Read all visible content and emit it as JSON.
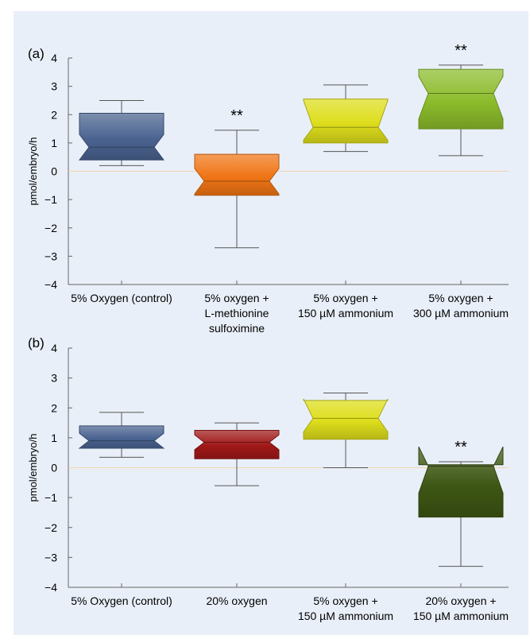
{
  "colors": {
    "background": "#e9eff8",
    "zero_line": "#f2d2b0",
    "whisker": "#555555"
  },
  "chart_data": [
    {
      "panel_label": "(a)",
      "type": "notched-boxplot",
      "ylabel": "pmol/embryo/h",
      "ylim": [
        -4,
        4
      ],
      "yticks": [
        "4",
        "3",
        "2",
        "1",
        "0",
        "−1",
        "−2",
        "−3",
        "−4"
      ],
      "categories": [
        [
          "5% Oxygen (control)"
        ],
        [
          "5% oxygen +",
          "L-methionine",
          "sulfoximine"
        ],
        [
          "5% oxygen +",
          "150 µM ammonium"
        ],
        [
          "5% oxygen +",
          "300 µM ammonium"
        ]
      ],
      "boxes": [
        {
          "whisker_low": 0.2,
          "q1": 0.4,
          "median": 0.85,
          "q3": 2.05,
          "whisker_high": 2.5,
          "notch_low": 0.4,
          "notch_high": 1.3,
          "color": "#4a6390",
          "significance": ""
        },
        {
          "whisker_low": -2.7,
          "q1": -0.85,
          "median": -0.35,
          "q3": 0.6,
          "whisker_high": 1.45,
          "notch_low": -0.8,
          "notch_high": 0.1,
          "color": "#f07515",
          "significance": "**"
        },
        {
          "whisker_low": 0.7,
          "q1": 1.0,
          "median": 1.55,
          "q3": 2.55,
          "whisker_high": 3.05,
          "notch_low": 1.1,
          "notch_high": 2.5,
          "color": "#dede1c",
          "significance": ""
        },
        {
          "whisker_low": 0.55,
          "q1": 1.5,
          "median": 2.75,
          "q3": 3.6,
          "whisker_high": 3.75,
          "notch_low": 1.85,
          "notch_high": 3.35,
          "color": "#8cbc2c",
          "significance": "**"
        }
      ]
    },
    {
      "panel_label": "(b)",
      "type": "notched-boxplot",
      "ylabel": "pmol/embryo/h",
      "ylim": [
        -4,
        4
      ],
      "yticks": [
        "4",
        "3",
        "2",
        "1",
        "0",
        "−1",
        "−2",
        "−3",
        "−4"
      ],
      "categories": [
        [
          "5% Oxygen (control)"
        ],
        [
          "20% oxygen"
        ],
        [
          "5% oxygen +",
          "150 µM ammonium"
        ],
        [
          "20% oxygen +",
          "150 µM ammonium"
        ]
      ],
      "boxes": [
        {
          "whisker_low": 0.35,
          "q1": 0.65,
          "median": 0.9,
          "q3": 1.4,
          "whisker_high": 1.85,
          "notch_low": 0.65,
          "notch_high": 1.15,
          "color": "#4a6390",
          "significance": ""
        },
        {
          "whisker_low": -0.6,
          "q1": 0.3,
          "median": 0.85,
          "q3": 1.25,
          "whisker_high": 1.5,
          "notch_low": 0.6,
          "notch_high": 1.1,
          "color": "#a01818",
          "significance": ""
        },
        {
          "whisker_low": 0.0,
          "q1": 0.95,
          "median": 1.65,
          "q3": 2.25,
          "whisker_high": 2.5,
          "notch_low": 1.2,
          "notch_high": 2.3,
          "color": "#dede1c",
          "significance": ""
        },
        {
          "whisker_low": -3.3,
          "q1": -1.65,
          "median": 0.05,
          "q3": 0.1,
          "whisker_high": 0.2,
          "notch_low": -0.85,
          "notch_high": 0.7,
          "color": "#3e5714",
          "significance": "**"
        }
      ]
    }
  ]
}
